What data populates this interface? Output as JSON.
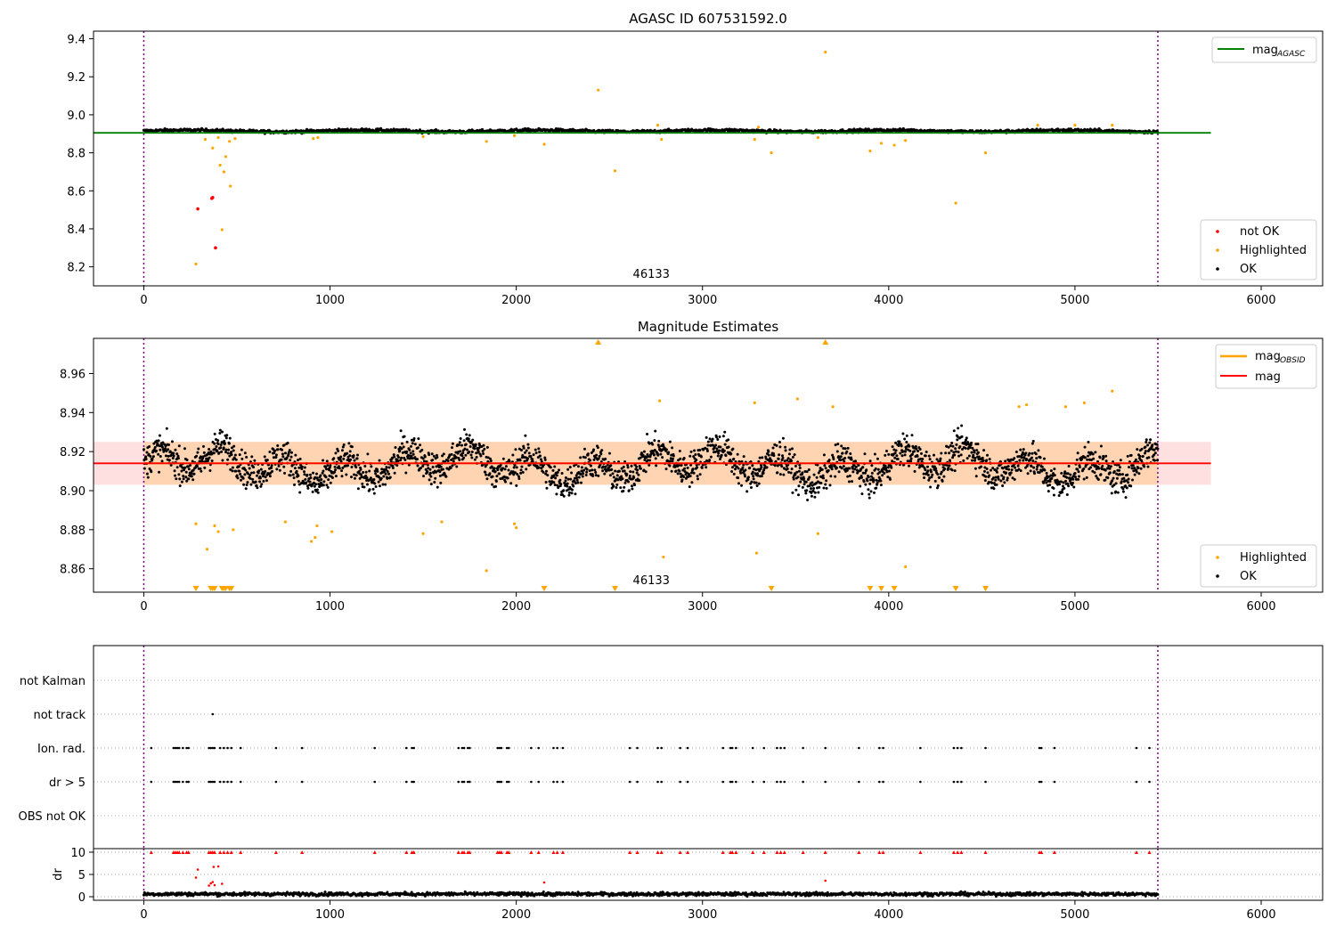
{
  "chart_data": [
    {
      "type": "scatter",
      "title": "AGASC ID 607531592.0",
      "xlim": [
        -270,
        6330
      ],
      "ylim": [
        8.1,
        9.44
      ],
      "xticks": [
        0,
        1000,
        2000,
        3000,
        4000,
        5000,
        6000
      ],
      "yticks": [
        8.2,
        8.4,
        8.6,
        8.8,
        9.0,
        9.2,
        9.4
      ],
      "ytick_labels": [
        "8.2",
        "8.4",
        "8.6",
        "8.8",
        "9.0",
        "9.2",
        "9.4"
      ],
      "obsid_label": "46133",
      "obs_boundaries": [
        0,
        5445
      ],
      "reference_line": {
        "name": "mag_AGASC",
        "legend_main": "mag",
        "legend_sub": "AGASC",
        "value": 8.905,
        "x": [
          -270,
          5730
        ],
        "color": "#008000"
      },
      "legend_lines_position": "top-right",
      "legend_points_position": "bottom-right",
      "series": [
        {
          "name": "not OK",
          "color": "#ff0000",
          "points": [
            [
              290,
              8.505
            ],
            [
              365,
              8.56
            ],
            [
              370,
              8.565
            ],
            [
              385,
              8.3
            ]
          ]
        },
        {
          "name": "Highlighted",
          "color": "#ffa500",
          "points": [
            [
              280,
              8.215
            ],
            [
              330,
              8.87
            ],
            [
              370,
              8.825
            ],
            [
              400,
              8.88
            ],
            [
              410,
              8.735
            ],
            [
              420,
              8.395
            ],
            [
              430,
              8.7
            ],
            [
              440,
              8.78
            ],
            [
              460,
              8.86
            ],
            [
              465,
              8.625
            ],
            [
              490,
              8.875
            ],
            [
              910,
              8.875
            ],
            [
              935,
              8.88
            ],
            [
              1500,
              8.885
            ],
            [
              1840,
              8.86
            ],
            [
              1990,
              8.89
            ],
            [
              2150,
              8.845
            ],
            [
              2440,
              9.13
            ],
            [
              2530,
              8.705
            ],
            [
              2760,
              8.945
            ],
            [
              2780,
              8.87
            ],
            [
              3280,
              8.87
            ],
            [
              3300,
              8.935
            ],
            [
              3370,
              8.8
            ],
            [
              3620,
              8.88
            ],
            [
              3660,
              9.33
            ],
            [
              3900,
              8.81
            ],
            [
              3960,
              8.85
            ],
            [
              4030,
              8.84
            ],
            [
              4090,
              8.865
            ],
            [
              4360,
              8.535
            ],
            [
              4520,
              8.8
            ],
            [
              4800,
              8.945
            ],
            [
              5000,
              8.945
            ],
            [
              5200,
              8.945
            ]
          ]
        },
        {
          "name": "OK",
          "color": "#000000",
          "band": {
            "center": 8.915,
            "spread": 0.014,
            "x": [
              0,
              5445
            ]
          }
        }
      ]
    },
    {
      "type": "scatter",
      "title": "Magnitude Estimates",
      "xlim": [
        -270,
        6330
      ],
      "ylim": [
        8.848,
        8.978
      ],
      "xticks": [
        0,
        1000,
        2000,
        3000,
        4000,
        5000,
        6000
      ],
      "yticks": [
        8.86,
        8.88,
        8.9,
        8.92,
        8.94,
        8.96
      ],
      "ytick_labels": [
        "8.86",
        "8.88",
        "8.90",
        "8.92",
        "8.94",
        "8.96"
      ],
      "obsid_label": "46133",
      "obs_boundaries": [
        0,
        5445
      ],
      "mag_obsid": {
        "name": "mag_OBSID",
        "legend_main": "mag",
        "legend_sub": "OBSID",
        "value": 8.914,
        "x": [
          0,
          5445
        ],
        "band": [
          8.903,
          8.925
        ],
        "color": "#ffa500"
      },
      "mag": {
        "name": "mag",
        "value": 8.914,
        "x": [
          -270,
          5730
        ],
        "band": [
          8.903,
          8.925
        ],
        "color": "#ff0000"
      },
      "legend_lines_position": "top-right",
      "legend_points_position": "bottom-right",
      "series": [
        {
          "name": "Highlighted",
          "color": "#ffa500",
          "points": [
            [
              280,
              8.883
            ],
            [
              340,
              8.87
            ],
            [
              380,
              8.882
            ],
            [
              400,
              8.879
            ],
            [
              480,
              8.88
            ],
            [
              760,
              8.884
            ],
            [
              900,
              8.874
            ],
            [
              920,
              8.876
            ],
            [
              930,
              8.882
            ],
            [
              1010,
              8.879
            ],
            [
              1500,
              8.878
            ],
            [
              1600,
              8.884
            ],
            [
              1840,
              8.859
            ],
            [
              1990,
              8.883
            ],
            [
              2000,
              8.881
            ],
            [
              2770,
              8.946
            ],
            [
              2790,
              8.866
            ],
            [
              3280,
              8.945
            ],
            [
              3290,
              8.868
            ],
            [
              3510,
              8.947
            ],
            [
              3620,
              8.878
            ],
            [
              3700,
              8.943
            ],
            [
              4090,
              8.861
            ],
            [
              4700,
              8.943
            ],
            [
              4740,
              8.944
            ],
            [
              4950,
              8.943
            ],
            [
              5050,
              8.945
            ],
            [
              5200,
              8.951
            ]
          ],
          "clipped_above": [
            2440,
            3660
          ],
          "clipped_below": [
            280,
            360,
            370,
            380,
            420,
            430,
            440,
            460,
            470,
            2150,
            2530,
            3370,
            3900,
            3960,
            4030,
            4360,
            4520
          ]
        },
        {
          "name": "OK",
          "color": "#000000",
          "band": {
            "center": 8.913,
            "spread": 0.011,
            "x": [
              0,
              5445
            ]
          }
        }
      ]
    },
    {
      "type": "scatter",
      "title": "",
      "xlim": [
        -270,
        6330
      ],
      "category_labels": [
        "OBS not OK",
        "dr > 5",
        "Ion. rad.",
        "not track",
        "not Kalman"
      ],
      "obs_boundaries": [
        0,
        5445
      ],
      "flag_times": [
        40,
        160,
        170,
        180,
        190,
        210,
        230,
        240,
        350,
        360,
        370,
        380,
        410,
        430,
        450,
        470,
        520,
        710,
        850,
        1240,
        1410,
        1440,
        1450,
        1690,
        1710,
        1720,
        1740,
        1750,
        1900,
        1910,
        1920,
        1950,
        1960,
        2080,
        2120,
        2200,
        2220,
        2250,
        2610,
        2650,
        2760,
        2780,
        2880,
        2920,
        3110,
        3150,
        3160,
        3180,
        3270,
        3330,
        3400,
        3420,
        3440,
        3540,
        3660,
        3840,
        3950,
        3970,
        4170,
        4350,
        4370,
        4390,
        4520,
        4810,
        4820,
        4890,
        5330,
        5400
      ],
      "not_track_times": [
        370
      ],
      "dr_panel": {
        "ylabel": "dr",
        "yticks": [
          0,
          5,
          10
        ],
        "ylim": [
          -0.8,
          10.8
        ],
        "ok_band": {
          "center": 0.6,
          "spread": 0.4,
          "x": [
            0,
            5445
          ]
        },
        "flagged_points": [
          [
            40,
            10
          ],
          [
            160,
            10
          ],
          [
            170,
            10
          ],
          [
            180,
            10
          ],
          [
            190,
            10
          ],
          [
            210,
            10
          ],
          [
            230,
            10
          ],
          [
            240,
            10
          ],
          [
            350,
            10
          ],
          [
            360,
            10
          ],
          [
            370,
            10
          ],
          [
            380,
            10
          ],
          [
            410,
            10
          ],
          [
            430,
            10
          ],
          [
            450,
            10
          ],
          [
            470,
            10
          ],
          [
            520,
            10
          ],
          [
            710,
            10
          ],
          [
            850,
            10
          ],
          [
            1240,
            10
          ],
          [
            1410,
            10
          ],
          [
            1440,
            10
          ],
          [
            1450,
            10
          ],
          [
            1690,
            10
          ],
          [
            1710,
            10
          ],
          [
            1720,
            10
          ],
          [
            1740,
            10
          ],
          [
            1750,
            10
          ],
          [
            1900,
            10
          ],
          [
            1910,
            10
          ],
          [
            1920,
            10
          ],
          [
            1950,
            10
          ],
          [
            1960,
            10
          ],
          [
            2080,
            10
          ],
          [
            2120,
            10
          ],
          [
            2200,
            10
          ],
          [
            2220,
            10
          ],
          [
            2250,
            10
          ],
          [
            2610,
            10
          ],
          [
            2650,
            10
          ],
          [
            2760,
            10
          ],
          [
            2780,
            10
          ],
          [
            2880,
            10
          ],
          [
            2920,
            10
          ],
          [
            3110,
            10
          ],
          [
            3150,
            10
          ],
          [
            3160,
            10
          ],
          [
            3180,
            10
          ],
          [
            3270,
            10
          ],
          [
            3330,
            10
          ],
          [
            3400,
            10
          ],
          [
            3420,
            10
          ],
          [
            3440,
            10
          ],
          [
            3540,
            10
          ],
          [
            3660,
            10
          ],
          [
            3840,
            10
          ],
          [
            3950,
            10
          ],
          [
            3970,
            10
          ],
          [
            4170,
            10
          ],
          [
            4350,
            10
          ],
          [
            4370,
            10
          ],
          [
            4390,
            10
          ],
          [
            4520,
            10
          ],
          [
            4810,
            10
          ],
          [
            4820,
            10
          ],
          [
            4890,
            10
          ],
          [
            5330,
            10
          ],
          [
            5400,
            10
          ],
          [
            280,
            4.3
          ],
          [
            290,
            6.1
          ],
          [
            350,
            2.5
          ],
          [
            360,
            3.0
          ],
          [
            370,
            3.3
          ],
          [
            375,
            6.7
          ],
          [
            380,
            2.6
          ],
          [
            400,
            6.8
          ],
          [
            420,
            2.9
          ],
          [
            2150,
            3.2
          ],
          [
            3660,
            3.6
          ]
        ],
        "flagged_color": "#ff0000",
        "ok_color": "#000000"
      }
    }
  ]
}
